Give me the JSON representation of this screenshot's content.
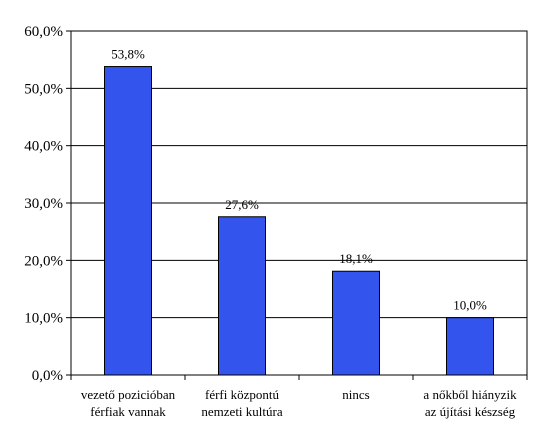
{
  "chart_data": {
    "type": "bar",
    "categories": [
      [
        "vezető pozicióban",
        "férfiak vannak"
      ],
      [
        "férfi központú",
        "nemzeti kultúra"
      ],
      [
        "nincs"
      ],
      [
        "a nőkből hiányzik",
        "az újítási készség"
      ]
    ],
    "values": [
      53.8,
      27.6,
      18.1,
      10.0
    ],
    "data_labels": [
      "53,8%",
      "27,6%",
      "18,1%",
      "10,0%"
    ],
    "yticks": [
      0,
      10,
      20,
      30,
      40,
      50,
      60
    ],
    "ytick_labels": [
      "0,0%",
      "10,0%",
      "20,0%",
      "30,0%",
      "40,0%",
      "50,0%",
      "60,0%"
    ],
    "ylim": [
      0,
      60
    ],
    "grid": true,
    "bar_color": "#3355ee",
    "title": "",
    "xlabel": "",
    "ylabel": ""
  }
}
